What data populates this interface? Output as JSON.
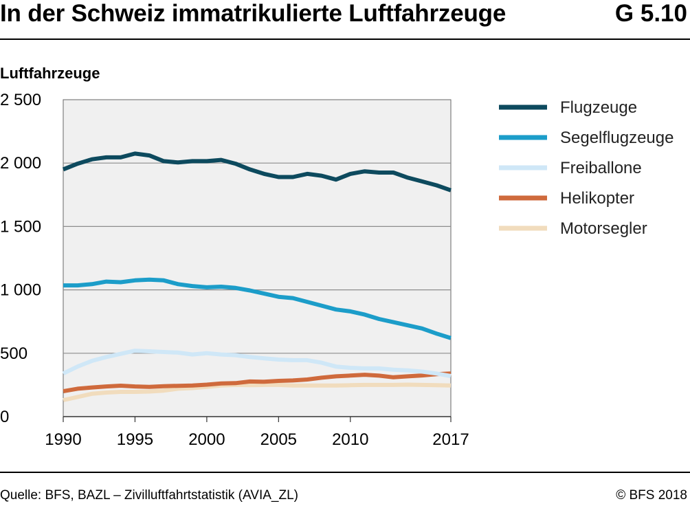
{
  "header": {
    "title": "In der Schweiz immatrikulierte Luftfahrzeuge",
    "code": "G 5.10"
  },
  "footer": {
    "source": "Quelle: BFS, BAZL – Zivilluftfahrtstatistik (AVIA_ZL)",
    "copyright": "© BFS 2018"
  },
  "chart_data": {
    "type": "line",
    "title": "In der Schweiz immatrikulierte Luftfahrzeuge",
    "xlabel": "",
    "ylabel": "Luftfahrzeuge",
    "xlim": [
      1990,
      2017
    ],
    "ylim": [
      0,
      2500
    ],
    "grid": true,
    "legend_position": "right",
    "x_tick_labels": [
      "1990",
      "1995",
      "2000",
      "2005",
      "2010",
      "2017"
    ],
    "x_ticks": [
      1990,
      1995,
      2000,
      2005,
      2010,
      2017
    ],
    "y_tick_labels": [
      "0",
      "500",
      "1 000",
      "1 500",
      "2 000",
      "2 500"
    ],
    "y_ticks": [
      0,
      500,
      1000,
      1500,
      2000,
      2500
    ],
    "x": [
      1990,
      1991,
      1992,
      1993,
      1994,
      1995,
      1996,
      1997,
      1998,
      1999,
      2000,
      2001,
      2002,
      2003,
      2004,
      2005,
      2006,
      2007,
      2008,
      2009,
      2010,
      2011,
      2012,
      2013,
      2014,
      2015,
      2016,
      2017
    ],
    "series": [
      {
        "name": "Flugzeuge",
        "color": "#0d4a5e",
        "values": [
          1950,
          1995,
          2030,
          2045,
          2045,
          2075,
          2060,
          2015,
          2005,
          2015,
          2015,
          2025,
          1995,
          1950,
          1915,
          1890,
          1890,
          1915,
          1900,
          1870,
          1915,
          1935,
          1925,
          1925,
          1885,
          1855,
          1825,
          1785
        ]
      },
      {
        "name": "Segelflugzeuge",
        "color": "#1c9dc9",
        "values": [
          1035,
          1035,
          1045,
          1065,
          1060,
          1075,
          1080,
          1075,
          1045,
          1030,
          1020,
          1025,
          1015,
          995,
          970,
          945,
          935,
          905,
          875,
          845,
          830,
          805,
          770,
          745,
          720,
          695,
          655,
          620
        ]
      },
      {
        "name": "Freiballone",
        "color": "#cfe7f7",
        "values": [
          340,
          395,
          440,
          470,
          495,
          520,
          515,
          510,
          505,
          490,
          500,
          490,
          485,
          470,
          460,
          450,
          445,
          445,
          425,
          395,
          385,
          380,
          380,
          370,
          365,
          355,
          340,
          320
        ]
      },
      {
        "name": "Helikopter",
        "color": "#cf6a3c",
        "values": [
          200,
          220,
          230,
          238,
          244,
          238,
          235,
          240,
          243,
          245,
          252,
          262,
          264,
          277,
          275,
          282,
          285,
          293,
          307,
          318,
          324,
          330,
          323,
          310,
          318,
          325,
          335,
          340
        ]
      },
      {
        "name": "Motorsegler",
        "color": "#f1dcbd",
        "values": [
          130,
          155,
          180,
          190,
          195,
          195,
          198,
          205,
          220,
          225,
          235,
          245,
          250,
          248,
          250,
          250,
          245,
          245,
          245,
          245,
          248,
          250,
          250,
          250,
          252,
          250,
          248,
          245
        ]
      }
    ]
  }
}
